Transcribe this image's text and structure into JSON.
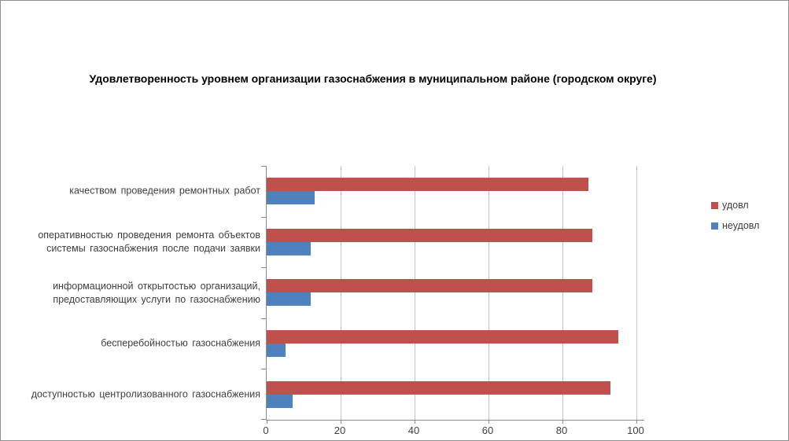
{
  "window": {
    "background_color": "#ffffff",
    "border_color": "#8f8f8f"
  },
  "chart_data": {
    "type": "bar",
    "orientation": "horizontal",
    "title": "Удовлетворенность уровнем организации газоснабжения в муниципальном районе (городском округе)",
    "categories": [
      "качеством проведения ремонтных работ",
      "оперативностью проведения ремонта объектов системы газоснабжения после подачи заявки",
      "информационной открытостью организаций, предоставляющих услуги по газоснабжению",
      "бесперебойностью газоснабжения",
      "доступностью центролизованного газоснабжения"
    ],
    "series": [
      {
        "name": "удовл",
        "color": "#C0504D",
        "values": [
          87,
          88,
          88,
          95,
          93
        ]
      },
      {
        "name": "неудовл",
        "color": "#4F81BD",
        "values": [
          13,
          12,
          12,
          5,
          7
        ]
      }
    ],
    "xlim": [
      0,
      100
    ],
    "x_ticks": [
      0,
      20,
      40,
      60,
      80,
      100
    ],
    "grid": true,
    "legend_position": "right",
    "axis_color": "#8c8c8c",
    "gridline_color": "#c3c3c3"
  }
}
